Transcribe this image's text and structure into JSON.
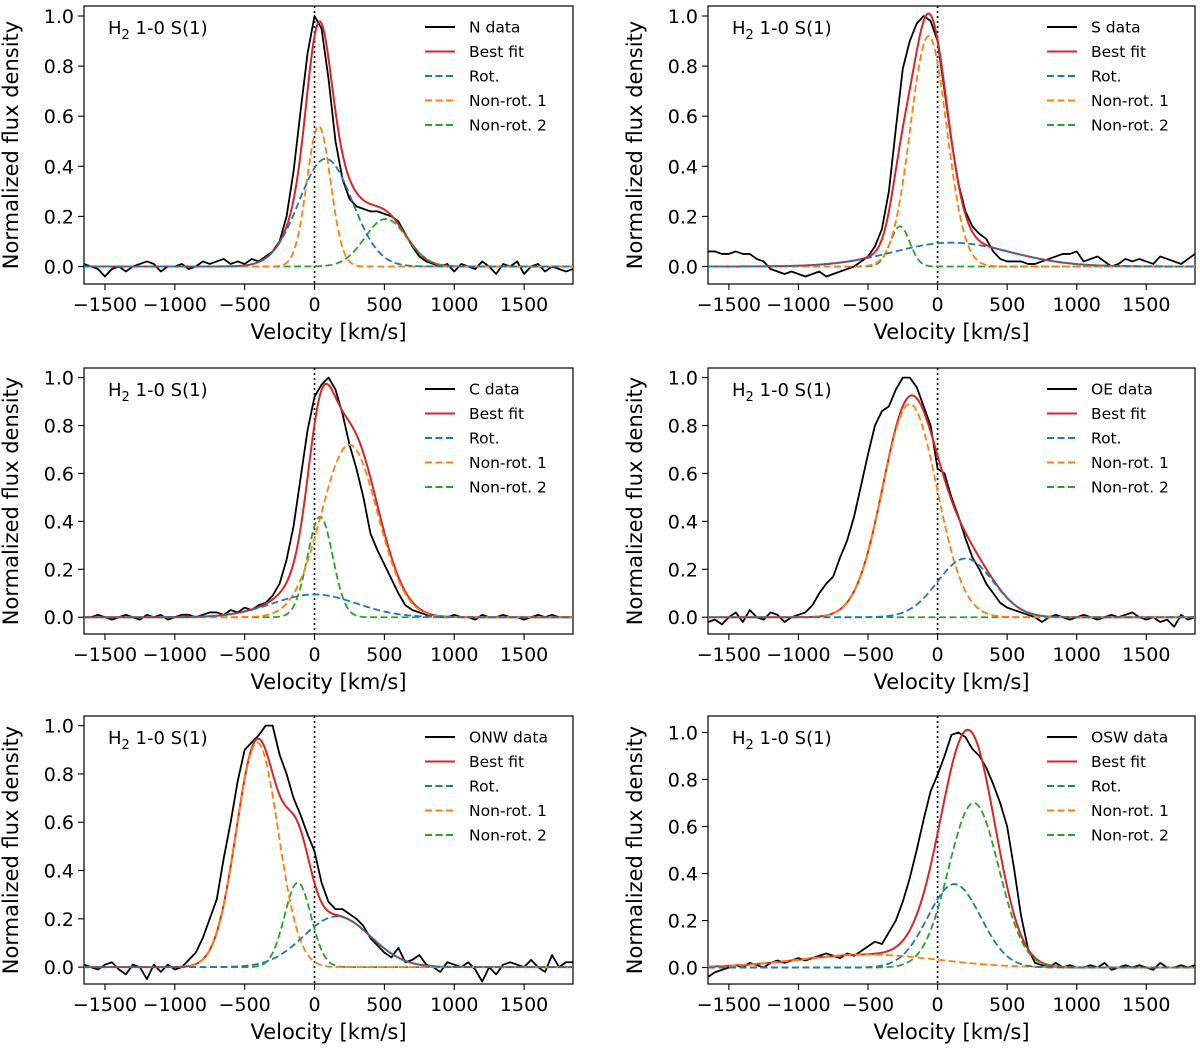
{
  "colors": {
    "data": "#000000",
    "best_fit": "#d62728",
    "rot": "#1f77b4",
    "nonrot1": "#ff7f0e",
    "nonrot2": "#2ca02c"
  },
  "chart_data": [
    {
      "type": "line",
      "line_label": "H$2 1-0 S(1)",
      "xlabel": "Velocity [km/s]",
      "ylabel": "Normalized flux density",
      "xlim": [
        -1650,
        1850
      ],
      "ylim": [
        -0.07,
        1.04
      ],
      "xticks": [
        -1500,
        -1000,
        -500,
        0,
        500,
        1000,
        1500
      ],
      "yticks": [
        0.0,
        0.2,
        0.4,
        0.6,
        0.8,
        1.0
      ],
      "vline_x": 0,
      "legend": [
        "N data",
        "Best fit",
        "Rot.",
        "Non-rot. 1",
        "Non-rot. 2"
      ],
      "components": {
        "rot": {
          "amp": 0.43,
          "center": 80,
          "sigma": 190
        },
        "nonrot1": {
          "amp": 0.56,
          "center": 30,
          "sigma": 85
        },
        "nonrot2": {
          "amp": 0.19,
          "center": 510,
          "sigma": 150
        }
      },
      "data_series": {
        "x": [
          -1650,
          -1600,
          -1550,
          -1500,
          -1450,
          -1400,
          -1350,
          -1300,
          -1250,
          -1200,
          -1150,
          -1100,
          -1050,
          -1000,
          -950,
          -900,
          -850,
          -800,
          -750,
          -700,
          -650,
          -600,
          -550,
          -500,
          -450,
          -400,
          -350,
          -300,
          -250,
          -200,
          -150,
          -100,
          -50,
          0,
          50,
          100,
          150,
          200,
          250,
          300,
          350,
          400,
          450,
          500,
          550,
          600,
          650,
          700,
          750,
          800,
          850,
          900,
          950,
          1000,
          1050,
          1100,
          1150,
          1200,
          1250,
          1300,
          1350,
          1400,
          1450,
          1500,
          1550,
          1600,
          1650,
          1700,
          1750,
          1800,
          1850
        ],
        "y": [
          0.01,
          0.0,
          -0.01,
          -0.04,
          -0.01,
          0.0,
          -0.02,
          0.0,
          0.01,
          0.02,
          0.01,
          -0.02,
          0.0,
          0.0,
          0.01,
          -0.01,
          0.0,
          0.02,
          0.01,
          0.02,
          0.03,
          0.01,
          0.02,
          0.01,
          0.03,
          0.02,
          0.04,
          0.06,
          0.1,
          0.2,
          0.38,
          0.62,
          0.85,
          1.0,
          0.95,
          0.75,
          0.5,
          0.35,
          0.27,
          0.24,
          0.23,
          0.22,
          0.22,
          0.21,
          0.2,
          0.18,
          0.13,
          0.08,
          0.04,
          0.02,
          0.01,
          0.0,
          0.01,
          -0.02,
          0.01,
          0.0,
          -0.01,
          0.02,
          0.0,
          -0.03,
          0.01,
          0.0,
          0.02,
          -0.03,
          0.0,
          0.01,
          -0.02,
          0.0,
          -0.01,
          -0.02,
          -0.01
        ]
      }
    },
    {
      "type": "line",
      "line_label": "H$2 1-0 S(1)",
      "xlabel": "Velocity [km/s]",
      "ylabel": "Normalized flux density",
      "xlim": [
        -1650,
        1850
      ],
      "ylim": [
        -0.07,
        1.04
      ],
      "xticks": [
        -1500,
        -1000,
        -500,
        0,
        500,
        1000,
        1500
      ],
      "yticks": [
        0.0,
        0.2,
        0.4,
        0.6,
        0.8,
        1.0
      ],
      "vline_x": 0,
      "legend": [
        "S data",
        "Best fit",
        "Rot.",
        "Non-rot. 1",
        "Non-rot. 2"
      ],
      "components": {
        "rot": {
          "amp": 0.095,
          "center": 100,
          "sigma": 420
        },
        "nonrot1": {
          "amp": 0.92,
          "center": -65,
          "sigma": 130
        },
        "nonrot2": {
          "amp": 0.16,
          "center": -270,
          "sigma": 70
        }
      },
      "data_series": {
        "x": [
          -1650,
          -1600,
          -1550,
          -1500,
          -1450,
          -1400,
          -1350,
          -1300,
          -1250,
          -1200,
          -1150,
          -1100,
          -1050,
          -1000,
          -950,
          -900,
          -850,
          -800,
          -750,
          -700,
          -650,
          -600,
          -550,
          -500,
          -450,
          -400,
          -350,
          -300,
          -250,
          -200,
          -150,
          -100,
          -50,
          0,
          50,
          100,
          150,
          200,
          250,
          300,
          350,
          400,
          450,
          500,
          550,
          600,
          650,
          700,
          750,
          800,
          850,
          900,
          950,
          1000,
          1050,
          1100,
          1150,
          1200,
          1250,
          1300,
          1350,
          1400,
          1450,
          1500,
          1550,
          1600,
          1650,
          1700,
          1750,
          1800,
          1850
        ],
        "y": [
          0.06,
          0.06,
          0.05,
          0.05,
          0.06,
          0.05,
          0.05,
          0.03,
          0.02,
          -0.01,
          -0.02,
          -0.03,
          -0.02,
          -0.03,
          -0.04,
          -0.03,
          -0.02,
          -0.04,
          -0.03,
          -0.02,
          -0.01,
          0.0,
          0.02,
          0.04,
          0.08,
          0.15,
          0.3,
          0.55,
          0.79,
          0.9,
          0.97,
          1.0,
          0.98,
          0.9,
          0.7,
          0.5,
          0.33,
          0.22,
          0.16,
          0.13,
          0.11,
          0.06,
          0.03,
          0.02,
          0.02,
          0.02,
          0.01,
          0.01,
          0.02,
          0.03,
          0.04,
          0.05,
          0.05,
          0.06,
          0.02,
          0.03,
          0.04,
          0.02,
          0.0,
          0.01,
          0.03,
          0.02,
          0.03,
          0.02,
          0.01,
          0.04,
          0.03,
          0.02,
          0.01,
          0.03,
          0.05
        ]
      }
    },
    {
      "type": "line",
      "line_label": "H$2 1-0 S(1)",
      "xlabel": "Velocity [km/s]",
      "ylabel": "Normalized flux density",
      "xlim": [
        -1650,
        1850
      ],
      "ylim": [
        -0.07,
        1.04
      ],
      "xticks": [
        -1500,
        -1000,
        -500,
        0,
        500,
        1000,
        1500
      ],
      "yticks": [
        0.0,
        0.2,
        0.4,
        0.6,
        0.8,
        1.0
      ],
      "vline_x": 0,
      "legend": [
        "C data",
        "Best fit",
        "Rot.",
        "Non-rot. 1",
        "Non-rot. 2"
      ],
      "components": {
        "rot": {
          "amp": 0.095,
          "center": 0,
          "sigma": 300
        },
        "nonrot1": {
          "amp": 0.72,
          "center": 250,
          "sigma": 200
        },
        "nonrot2": {
          "amp": 0.42,
          "center": 40,
          "sigma": 90
        }
      },
      "data_series": {
        "x": [
          -1650,
          -1600,
          -1550,
          -1500,
          -1450,
          -1400,
          -1350,
          -1300,
          -1250,
          -1200,
          -1150,
          -1100,
          -1050,
          -1000,
          -950,
          -900,
          -850,
          -800,
          -750,
          -700,
          -650,
          -600,
          -550,
          -500,
          -450,
          -400,
          -350,
          -300,
          -250,
          -200,
          -150,
          -100,
          -50,
          0,
          50,
          100,
          150,
          200,
          250,
          300,
          350,
          400,
          450,
          500,
          550,
          600,
          650,
          700,
          750,
          800,
          850,
          900,
          950,
          1000,
          1050,
          1100,
          1150,
          1200,
          1250,
          1300,
          1350,
          1400,
          1450,
          1500,
          1550,
          1600,
          1650,
          1700,
          1750,
          1800,
          1850
        ],
        "y": [
          0.0,
          0.0,
          0.01,
          0.0,
          -0.01,
          0.0,
          0.01,
          0.0,
          -0.01,
          0.01,
          0.0,
          0.01,
          -0.01,
          0.0,
          0.01,
          0.01,
          0.0,
          0.01,
          0.02,
          0.02,
          0.01,
          0.03,
          0.02,
          0.04,
          0.03,
          0.05,
          0.06,
          0.09,
          0.14,
          0.24,
          0.38,
          0.58,
          0.78,
          0.92,
          0.97,
          1.0,
          0.95,
          0.85,
          0.72,
          0.62,
          0.5,
          0.35,
          0.28,
          0.22,
          0.16,
          0.1,
          0.05,
          0.03,
          0.02,
          0.01,
          0.01,
          0.0,
          0.0,
          0.01,
          0.0,
          0.0,
          -0.01,
          0.01,
          0.0,
          0.0,
          0.01,
          0.0,
          0.0,
          -0.01,
          0.0,
          0.01,
          0.0,
          0.01,
          0.0,
          0.0,
          0.0
        ]
      }
    },
    {
      "type": "line",
      "line_label": "H$2 1-0 S(1)",
      "xlabel": "Velocity [km/s]",
      "ylabel": "Normalized flux density",
      "xlim": [
        -1650,
        1850
      ],
      "ylim": [
        -0.07,
        1.04
      ],
      "xticks": [
        -1500,
        -1000,
        -500,
        0,
        500,
        1000,
        1500
      ],
      "yticks": [
        0.0,
        0.2,
        0.4,
        0.6,
        0.8,
        1.0
      ],
      "vline_x": 0,
      "legend": [
        "OE data",
        "Best fit",
        "Rot.",
        "Non-rot. 1",
        "Non-rot. 2"
      ],
      "components": {
        "rot": {
          "amp": 0.245,
          "center": 200,
          "sigma": 200
        },
        "nonrot1": {
          "amp": 0.89,
          "center": -200,
          "sigma": 195
        },
        "nonrot2": {
          "amp": 0.0,
          "center": 0,
          "sigma": 100
        }
      },
      "data_series": {
        "x": [
          -1650,
          -1600,
          -1550,
          -1500,
          -1450,
          -1400,
          -1350,
          -1300,
          -1250,
          -1200,
          -1150,
          -1100,
          -1050,
          -1000,
          -950,
          -900,
          -850,
          -800,
          -750,
          -700,
          -650,
          -600,
          -550,
          -500,
          -450,
          -400,
          -350,
          -300,
          -250,
          -200,
          -150,
          -100,
          -50,
          0,
          50,
          100,
          150,
          200,
          250,
          300,
          350,
          400,
          450,
          500,
          550,
          600,
          650,
          700,
          750,
          800,
          850,
          900,
          950,
          1000,
          1050,
          1100,
          1150,
          1200,
          1250,
          1300,
          1350,
          1400,
          1450,
          1500,
          1550,
          1600,
          1650,
          1700,
          1750,
          1800,
          1850
        ],
        "y": [
          -0.02,
          -0.01,
          -0.03,
          0.0,
          0.02,
          -0.02,
          0.03,
          0.0,
          -0.01,
          0.02,
          0.01,
          -0.02,
          0.0,
          0.01,
          0.02,
          0.05,
          0.1,
          0.14,
          0.17,
          0.25,
          0.32,
          0.42,
          0.55,
          0.68,
          0.8,
          0.86,
          0.88,
          0.95,
          1.0,
          1.0,
          0.96,
          0.88,
          0.8,
          0.62,
          0.6,
          0.5,
          0.42,
          0.33,
          0.25,
          0.2,
          0.14,
          0.1,
          0.06,
          0.04,
          0.03,
          0.02,
          0.01,
          0.0,
          -0.02,
          0.0,
          0.01,
          0.0,
          -0.01,
          0.0,
          0.01,
          0.0,
          -0.01,
          0.0,
          0.01,
          0.0,
          0.01,
          0.02,
          0.0,
          -0.01,
          0.0,
          -0.02,
          -0.01,
          -0.04,
          0.01,
          -0.01,
          0.0
        ]
      }
    },
    {
      "type": "line",
      "line_label": "H$2 1-0 S(1)",
      "xlabel": "Velocity [km/s]",
      "ylabel": "Normalized flux density",
      "xlim": [
        -1650,
        1850
      ],
      "ylim": [
        -0.07,
        1.04
      ],
      "xticks": [
        -1500,
        -1000,
        -500,
        0,
        500,
        1000,
        1500
      ],
      "yticks": [
        0.0,
        0.2,
        0.4,
        0.6,
        0.8,
        1.0
      ],
      "vline_x": 0,
      "legend": [
        "ONW data",
        "Best fit",
        "Rot.",
        "Non-rot. 1",
        "Non-rot. 2"
      ],
      "components": {
        "rot": {
          "amp": 0.21,
          "center": 160,
          "sigma": 240
        },
        "nonrot1": {
          "amp": 0.93,
          "center": -410,
          "sigma": 150
        },
        "nonrot2": {
          "amp": 0.35,
          "center": -120,
          "sigma": 95
        }
      },
      "data_series": {
        "x": [
          -1650,
          -1600,
          -1550,
          -1500,
          -1450,
          -1400,
          -1350,
          -1300,
          -1250,
          -1200,
          -1150,
          -1100,
          -1050,
          -1000,
          -950,
          -900,
          -850,
          -800,
          -750,
          -700,
          -650,
          -600,
          -550,
          -500,
          -450,
          -400,
          -350,
          -300,
          -250,
          -200,
          -150,
          -100,
          -50,
          0,
          50,
          100,
          150,
          200,
          250,
          300,
          350,
          400,
          450,
          500,
          550,
          600,
          650,
          700,
          750,
          800,
          850,
          900,
          950,
          1000,
          1050,
          1100,
          1150,
          1200,
          1250,
          1300,
          1350,
          1400,
          1450,
          1500,
          1550,
          1600,
          1650,
          1700,
          1750,
          1800,
          1850
        ],
        "y": [
          0.01,
          0.0,
          -0.01,
          0.01,
          0.02,
          -0.01,
          -0.03,
          0.01,
          0.0,
          -0.05,
          0.01,
          -0.02,
          0.01,
          -0.01,
          0.0,
          0.03,
          0.06,
          0.12,
          0.2,
          0.28,
          0.45,
          0.6,
          0.77,
          0.9,
          0.93,
          0.96,
          1.0,
          1.0,
          0.88,
          0.8,
          0.7,
          0.63,
          0.55,
          0.48,
          0.35,
          0.27,
          0.24,
          0.24,
          0.22,
          0.2,
          0.17,
          0.12,
          0.09,
          0.06,
          0.04,
          0.08,
          0.02,
          0.03,
          0.05,
          0.01,
          0.0,
          -0.02,
          0.02,
          0.01,
          0.0,
          0.02,
          -0.01,
          -0.06,
          0.0,
          -0.03,
          0.01,
          0.02,
          0.01,
          0.0,
          0.03,
          0.0,
          -0.02,
          0.05,
          0.0,
          0.02,
          0.02
        ]
      }
    },
    {
      "type": "line",
      "line_label": "H$2 1-0 S(1)",
      "xlabel": "Velocity [km/s]",
      "ylabel": "Normalized flux density",
      "xlim": [
        -1650,
        1850
      ],
      "ylim": [
        -0.07,
        1.07
      ],
      "xticks": [
        -1500,
        -1000,
        -500,
        0,
        500,
        1000,
        1500
      ],
      "yticks": [
        0.0,
        0.2,
        0.4,
        0.6,
        0.8,
        1.0
      ],
      "vline_x": 0,
      "legend": [
        "OSW data",
        "Best fit",
        "Rot.",
        "Non-rot. 1",
        "Non-rot. 2"
      ],
      "components": {
        "rot": {
          "amp": 0.355,
          "center": 120,
          "sigma": 190
        },
        "nonrot1": {
          "amp": 0.055,
          "center": -500,
          "sigma": 500
        },
        "nonrot2": {
          "amp": 0.7,
          "center": 260,
          "sigma": 180
        }
      },
      "data_series": {
        "x": [
          -1650,
          -1600,
          -1550,
          -1500,
          -1450,
          -1400,
          -1350,
          -1300,
          -1250,
          -1200,
          -1150,
          -1100,
          -1050,
          -1000,
          -950,
          -900,
          -850,
          -800,
          -750,
          -700,
          -650,
          -600,
          -550,
          -500,
          -450,
          -400,
          -350,
          -300,
          -250,
          -200,
          -150,
          -100,
          -50,
          0,
          50,
          100,
          150,
          200,
          250,
          300,
          350,
          400,
          450,
          500,
          550,
          600,
          650,
          700,
          750,
          800,
          850,
          900,
          950,
          1000,
          1050,
          1100,
          1150,
          1200,
          1250,
          1300,
          1350,
          1400,
          1450,
          1500,
          1550,
          1600,
          1650,
          1700,
          1750,
          1800,
          1850
        ],
        "y": [
          -0.04,
          -0.02,
          -0.01,
          0.0,
          0.01,
          0.0,
          0.02,
          0.01,
          0.0,
          0.02,
          0.03,
          0.02,
          0.03,
          0.04,
          0.03,
          0.04,
          0.05,
          0.06,
          0.05,
          0.04,
          0.06,
          0.05,
          0.07,
          0.09,
          0.11,
          0.1,
          0.15,
          0.2,
          0.28,
          0.38,
          0.5,
          0.63,
          0.75,
          0.82,
          0.9,
          0.99,
          1.0,
          0.98,
          0.93,
          0.9,
          0.85,
          0.78,
          0.7,
          0.6,
          0.42,
          0.22,
          0.08,
          0.02,
          0.01,
          0.0,
          0.02,
          0.0,
          0.01,
          0.0,
          0.0,
          0.01,
          0.0,
          0.02,
          -0.01,
          0.0,
          0.01,
          0.0,
          0.01,
          0.0,
          -0.01,
          0.02,
          0.0,
          0.0,
          0.01,
          0.0,
          0.01
        ]
      }
    }
  ]
}
